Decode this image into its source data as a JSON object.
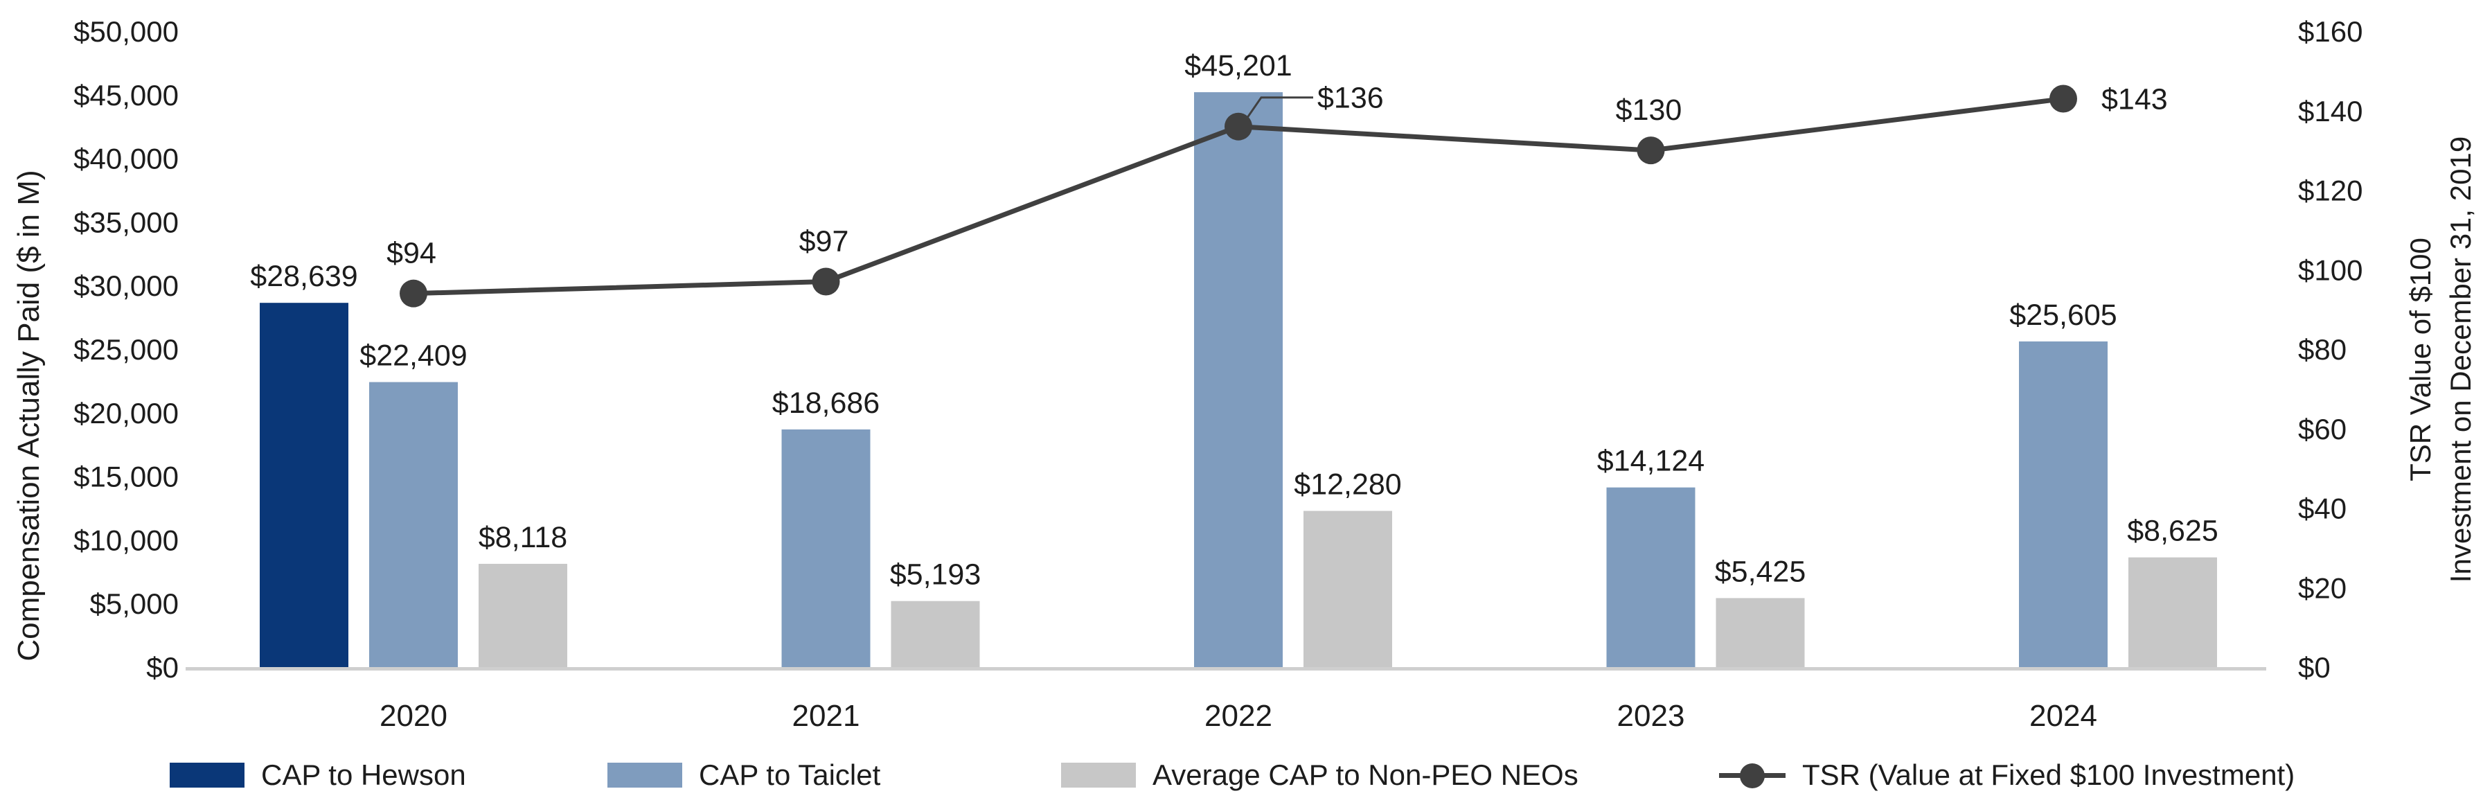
{
  "chart_data": {
    "type": "bar+line-combo",
    "background": "#ffffff",
    "grid": false,
    "legend_position": "bottom",
    "categories": [
      "2020",
      "2021",
      "2022",
      "2023",
      "2024"
    ],
    "series": [
      {
        "name": "CAP to Hewson",
        "chart_type": "bar",
        "axis": "left",
        "color": "#0a3778",
        "values": [
          28639,
          null,
          null,
          null,
          null
        ],
        "data_labels": [
          "$28,639",
          "",
          "",
          "",
          ""
        ]
      },
      {
        "name": "CAP to Taiclet",
        "chart_type": "bar",
        "axis": "left",
        "color": "#7f9cbe",
        "values": [
          22409,
          18686,
          45201,
          14124,
          25605
        ],
        "data_labels": [
          "$22,409",
          "$18,686",
          "$45,201",
          "$14,124",
          "$25,605"
        ]
      },
      {
        "name": "Average CAP to Non-PEO NEOs",
        "chart_type": "bar",
        "axis": "left",
        "color": "#c7c7c7",
        "values": [
          8118,
          5193,
          12280,
          5425,
          8625
        ],
        "data_labels": [
          "$8,118",
          "$5,193",
          "$12,280",
          "$5,425",
          "$8,625"
        ]
      },
      {
        "name": "TSR (Value at Fixed $100 Investment)",
        "chart_type": "line",
        "axis": "right",
        "color": "#404040",
        "values": [
          94,
          97,
          136,
          130,
          143
        ],
        "data_labels": [
          "$94",
          "$97",
          "$136",
          "$130",
          "$143"
        ],
        "label_placements": [
          "above",
          "above",
          "leader-right",
          "above",
          "right"
        ]
      }
    ],
    "left_axis": {
      "label": "Compensation Actually Paid ($ in M)",
      "min": 0,
      "max": 50000,
      "tick_step": 5000,
      "ticks": [
        "$0",
        "$5,000",
        "$10,000",
        "$15,000",
        "$20,000",
        "$25,000",
        "$30,000",
        "$35,000",
        "$40,000",
        "$45,000",
        "$50,000"
      ]
    },
    "right_axis": {
      "label_line1": "TSR Value of $100",
      "label_line2": "Investment on December 31, 2019",
      "min": 0,
      "max": 160,
      "tick_step": 20,
      "ticks": [
        "$0",
        "$20",
        "$40",
        "$60",
        "$80",
        "$100",
        "$120",
        "$140",
        "$160"
      ]
    }
  }
}
